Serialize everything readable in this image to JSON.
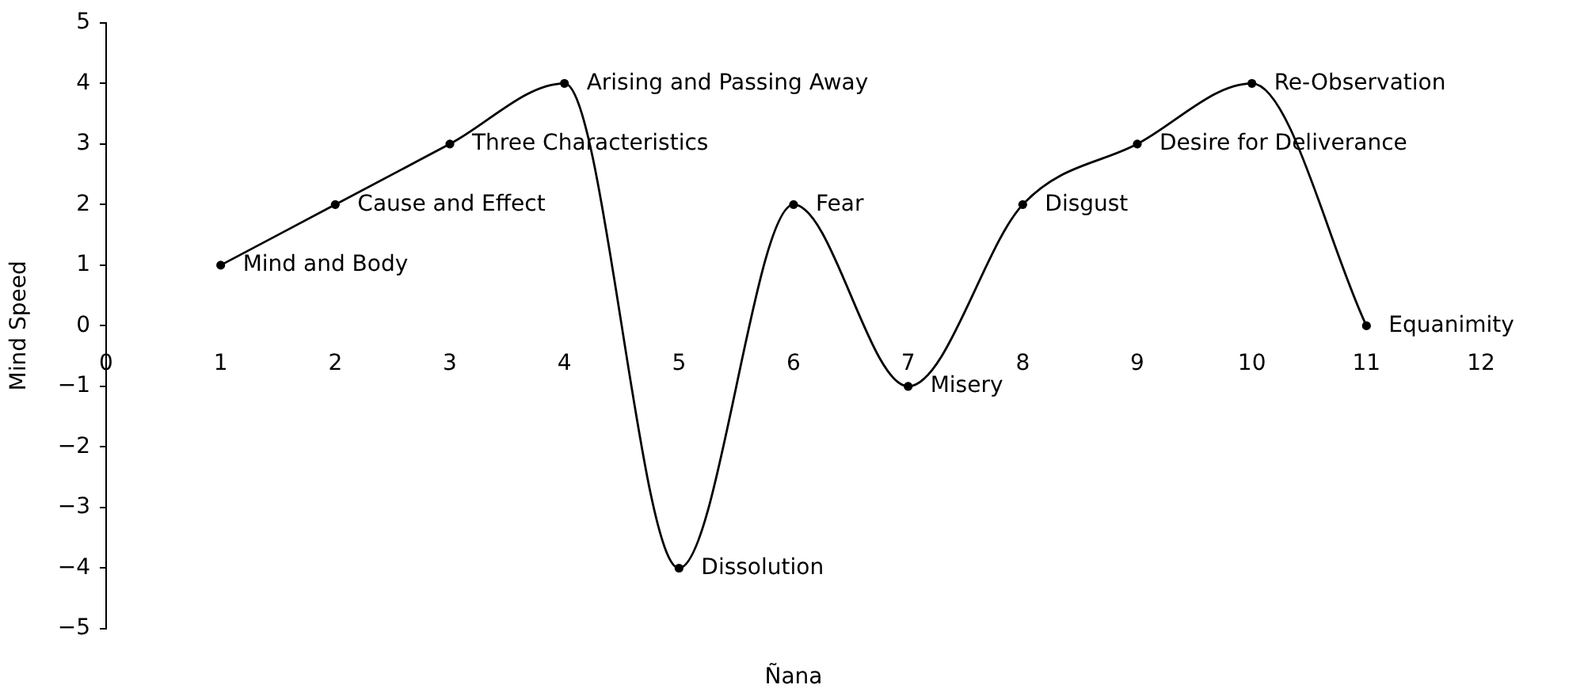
{
  "chart_data": {
    "type": "line",
    "xlabel": "Ñana",
    "ylabel": "Mind Speed",
    "series": [
      {
        "color": "#000000",
        "x": [
          1,
          2,
          3,
          4,
          5,
          6,
          7,
          8,
          9,
          10,
          11
        ],
        "values": [
          1,
          2,
          3,
          4,
          -4,
          2,
          -1,
          2,
          3,
          4,
          0
        ]
      }
    ],
    "xlim": [
      0,
      12
    ],
    "xticks": [
      0,
      1,
      2,
      3,
      4,
      5,
      6,
      7,
      8,
      9,
      10,
      11,
      12
    ],
    "ylim": [
      -5,
      5
    ],
    "yticks": [
      {
        "value": -5,
        "label": "−5"
      },
      {
        "value": -4,
        "label": "−4"
      },
      {
        "value": -3,
        "label": "−3"
      },
      {
        "value": -2,
        "label": "−2"
      },
      {
        "value": -1,
        "label": "−1"
      },
      0,
      1,
      2,
      3,
      4,
      5
    ],
    "marker": "circle",
    "line_style": "solid",
    "annotations": [
      {
        "text": "Mind and Body",
        "x": 1,
        "y": 1
      },
      {
        "text": "Cause and Effect",
        "x": 2,
        "y": 2
      },
      {
        "text": "Three Characteristics",
        "x": 3,
        "y": 3
      },
      {
        "text": "Arising and Passing Away",
        "x": 4,
        "y": 4
      },
      {
        "text": "Dissolution",
        "x": 5,
        "y": -4
      },
      {
        "text": "Fear",
        "x": 6,
        "y": 2
      },
      {
        "text": "Misery",
        "x": 7,
        "y": -1
      },
      {
        "text": "Disgust",
        "x": 8,
        "y": 2
      },
      {
        "text": "Desire for Deliverance",
        "x": 9,
        "y": 3
      },
      {
        "text": "Re-Observation",
        "x": 10,
        "y": 4
      },
      {
        "text": "Equanimity",
        "x": 11,
        "y": 0
      }
    ]
  }
}
